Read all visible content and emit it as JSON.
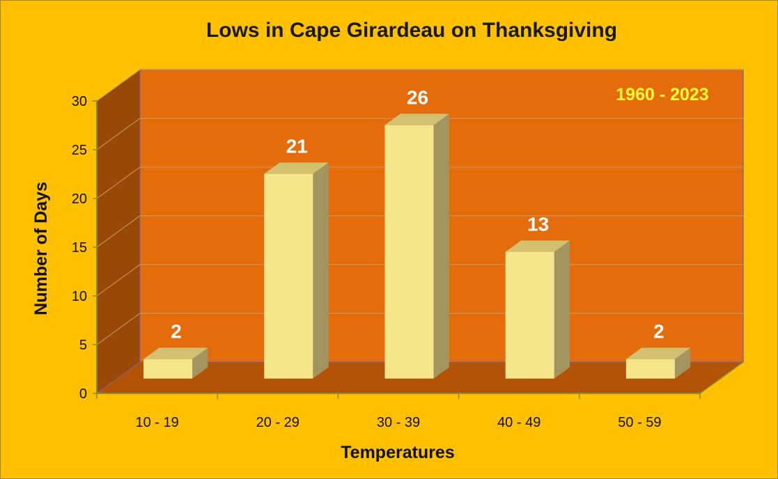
{
  "chart_data": {
    "type": "bar",
    "title": "Lows in Cape Girardeau on Thanksgiving",
    "annotation": "1960 - 2023",
    "xlabel": "Temperatures",
    "ylabel": "Number of Days",
    "categories": [
      "10 - 19",
      "20 - 29",
      "30 - 39",
      "40 - 49",
      "50 - 59"
    ],
    "values": [
      2,
      21,
      26,
      13,
      2
    ],
    "data_labels": [
      "2",
      "21",
      "26",
      "13",
      "2"
    ],
    "y_ticks": [
      "0",
      "5",
      "10",
      "15",
      "20",
      "25",
      "30"
    ],
    "ylim": [
      0,
      30
    ],
    "grid": true,
    "legend": "none",
    "colors": {
      "background": "#FFC000",
      "back_wall": "#E46C0A",
      "side_wall": "#984807",
      "floor": "#B35308",
      "gridline": "#C9A16A",
      "bar_front": "#F5E68C",
      "bar_top": "#D4C070",
      "bar_side": "#A39560",
      "data_label": "#FFFFFF",
      "annotation": "#FFFF33"
    }
  }
}
